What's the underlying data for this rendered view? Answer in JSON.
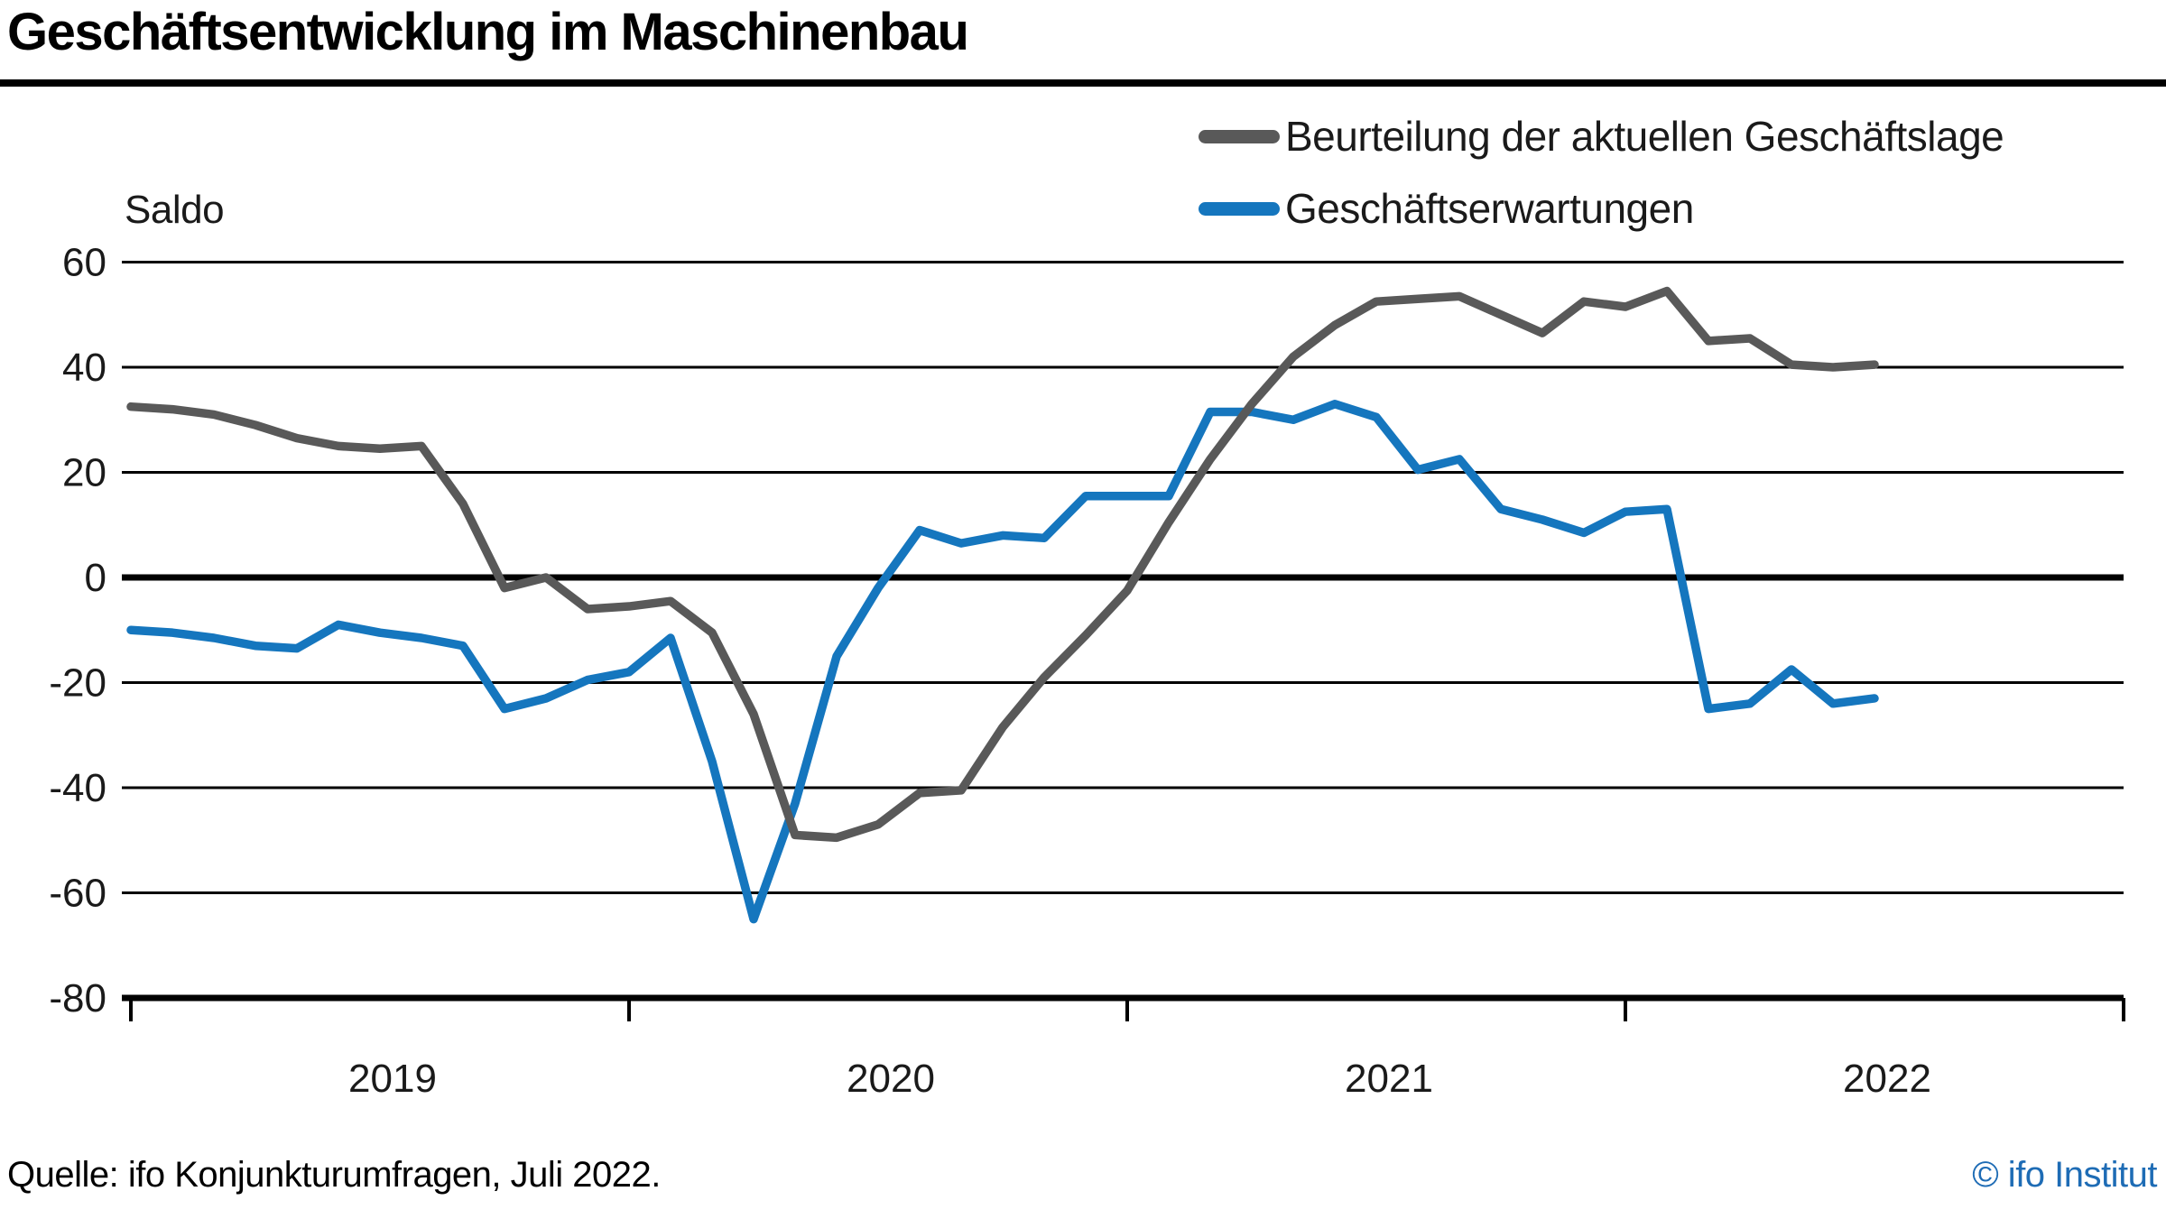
{
  "header": {
    "title": "Geschäftsentwicklung im Maschinenbau"
  },
  "chart_data": {
    "type": "line",
    "title": "Geschäftsentwicklung im Maschinenbau",
    "ylabel": "Saldo",
    "xlabel": "",
    "grid": "horizontal",
    "legend_position": "top-right",
    "y_ticks": [
      60,
      40,
      20,
      0,
      -20,
      -40,
      -60,
      -80
    ],
    "ylim": [
      -80,
      60
    ],
    "x_tick_years": [
      "2019",
      "2020",
      "2021",
      "2022"
    ],
    "x_range": {
      "start": "2019-01",
      "end": "2022-07",
      "frequency": "monthly",
      "points": 43
    },
    "series": [
      {
        "name": "Beurteilung der aktuellen Geschäftslage",
        "color": "#595959",
        "values": [
          32.5,
          32,
          31,
          29,
          26.5,
          25,
          24.5,
          25,
          14,
          -2,
          0,
          -6,
          -5.5,
          -4.5,
          -10.5,
          -26,
          -49,
          -49.5,
          -47,
          -41,
          -40.5,
          -28.5,
          -19,
          -11,
          -2.5,
          10.5,
          22.5,
          33,
          42,
          48,
          52.5,
          53,
          53.5,
          50,
          46.5,
          52.5,
          51.5,
          54.5,
          45,
          45.5,
          40.5,
          40,
          40.5
        ]
      },
      {
        "name": "Geschäftserwartungen",
        "color": "#1576be",
        "values": [
          -10,
          -10.5,
          -11.5,
          -13,
          -13.5,
          -9,
          -10.5,
          -11.5,
          -13,
          -25,
          -23,
          -19.5,
          -18,
          -11.5,
          -35,
          -65,
          -43,
          -15,
          -2,
          9,
          6.5,
          8,
          7.5,
          15.5,
          15.5,
          15.5,
          31.5,
          31.5,
          30,
          33,
          30.5,
          20.5,
          22.5,
          13,
          11,
          8.5,
          12.5,
          13,
          -25,
          -24,
          -17.5,
          -24,
          -23
        ]
      }
    ],
    "axis_color": "#000000"
  },
  "footer": {
    "source": "Quelle: ifo Konjunkturumfragen, Juli 2022.",
    "copyright": "© ifo Institut",
    "copyright_color": "#1e6cb5"
  }
}
